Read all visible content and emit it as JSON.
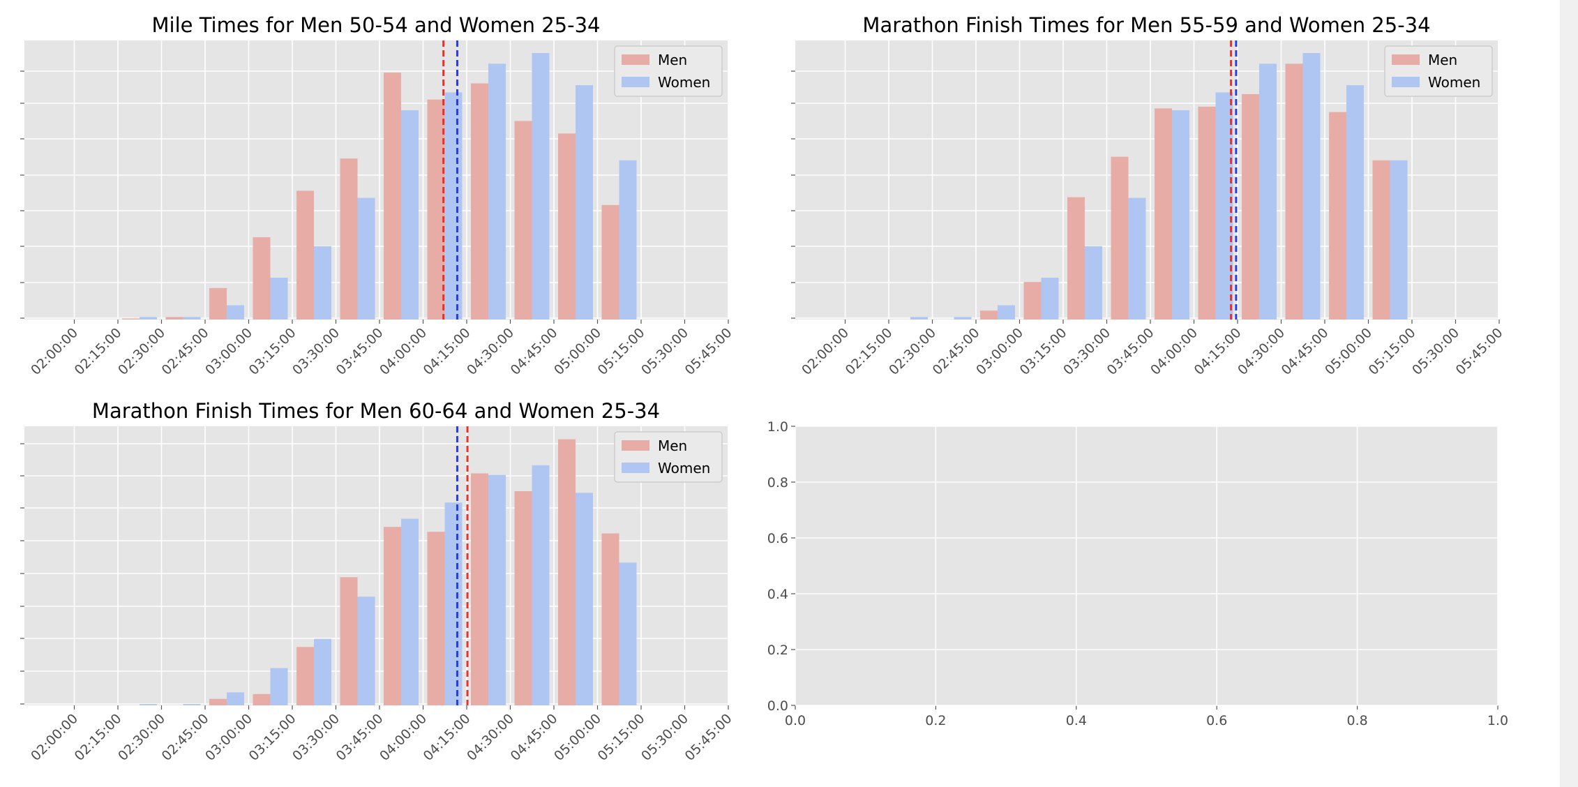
{
  "chart_data": [
    {
      "type": "bar",
      "title": "Mile Times for Men 50-54 and Women 25-34",
      "xlabel": "",
      "ylabel": "",
      "categories": [
        "02:00:00",
        "02:15:00",
        "02:30:00",
        "02:45:00",
        "03:00:00",
        "03:15:00",
        "03:30:00",
        "03:45:00",
        "04:00:00",
        "04:15:00",
        "04:30:00",
        "04:45:00",
        "05:00:00",
        "05:15:00",
        "05:30:00",
        "05:45:00"
      ],
      "y_tick_labels_shown": false,
      "ylim": [
        0,
        7.8
      ],
      "series": [
        {
          "name": "Men",
          "color": "#e8aca6",
          "values": [
            0,
            0.03,
            0.07,
            0.88,
            2.3,
            3.6,
            4.5,
            6.9,
            6.15,
            6.6,
            5.55,
            5.2,
            3.2,
            0,
            0,
            0
          ]
        },
        {
          "name": "Women",
          "color": "#afc6f2",
          "values": [
            0,
            0.07,
            0.07,
            0.4,
            1.17,
            2.05,
            3.4,
            5.85,
            6.35,
            7.15,
            7.45,
            6.55,
            4.45,
            0,
            0,
            0
          ]
        }
      ],
      "mean_lines": [
        {
          "series": "Men",
          "color": "#e8312b",
          "x": "04:07:00"
        },
        {
          "series": "Women",
          "color": "#2b3be0",
          "x": "04:11:45"
        }
      ],
      "legend": "upper right",
      "grid": true
    },
    {
      "type": "bar",
      "title": "Marathon Finish Times for Men 55-59 and Women 25-34",
      "xlabel": "",
      "ylabel": "",
      "categories": [
        "02:00:00",
        "02:15:00",
        "02:30:00",
        "02:45:00",
        "03:00:00",
        "03:15:00",
        "03:30:00",
        "03:45:00",
        "04:00:00",
        "04:15:00",
        "04:30:00",
        "04:45:00",
        "05:00:00",
        "05:15:00",
        "05:30:00",
        "05:45:00"
      ],
      "y_tick_labels_shown": false,
      "ylim": [
        0,
        7.8
      ],
      "series": [
        {
          "name": "Men",
          "color": "#e8aca6",
          "values": [
            0,
            0,
            0,
            0.25,
            1.05,
            3.42,
            4.55,
            5.9,
            5.95,
            6.3,
            7.15,
            5.8,
            4.45,
            0,
            0,
            0
          ]
        },
        {
          "name": "Women",
          "color": "#afc6f2",
          "values": [
            0,
            0.07,
            0.07,
            0.4,
            1.17,
            2.05,
            3.4,
            5.85,
            6.35,
            7.15,
            7.45,
            6.55,
            4.45,
            0,
            0,
            0
          ]
        }
      ],
      "mean_lines": [
        {
          "series": "Men",
          "color": "#e8312b",
          "x": "04:12:45"
        },
        {
          "series": "Women",
          "color": "#2b3be0",
          "x": "04:14:30"
        }
      ],
      "legend": "upper right",
      "grid": true
    },
    {
      "type": "bar",
      "title": "Marathon Finish Times for Men 60-64 and Women 25-34",
      "xlabel": "",
      "ylabel": "",
      "categories": [
        "02:00:00",
        "02:15:00",
        "02:30:00",
        "02:45:00",
        "03:00:00",
        "03:15:00",
        "03:30:00",
        "03:45:00",
        "04:00:00",
        "04:15:00",
        "04:30:00",
        "04:45:00",
        "05:00:00",
        "05:15:00",
        "05:30:00",
        "05:45:00"
      ],
      "y_tick_labels_shown": false,
      "ylim": [
        0,
        8.6
      ],
      "series": [
        {
          "name": "Men",
          "color": "#e8aca6",
          "values": [
            0,
            0,
            0,
            0.2,
            0.35,
            1.8,
            3.95,
            5.5,
            5.35,
            7.15,
            6.6,
            8.2,
            5.3,
            0,
            0,
            0
          ]
        },
        {
          "name": "Women",
          "color": "#afc6f2",
          "values": [
            0,
            0.04,
            0.04,
            0.4,
            1.15,
            2.05,
            3.35,
            5.75,
            6.25,
            7.1,
            7.4,
            6.55,
            4.4,
            0,
            0,
            0
          ]
        }
      ],
      "mean_lines": [
        {
          "series": "Men",
          "color": "#e8312b",
          "x": "04:15:15"
        },
        {
          "series": "Women",
          "color": "#2b3be0",
          "x": "04:11:45"
        }
      ],
      "legend": "upper right",
      "grid": true
    },
    {
      "type": "line",
      "title": "",
      "xlabel": "",
      "ylabel": "",
      "series": [],
      "xlim": [
        0.0,
        1.0
      ],
      "ylim": [
        0.0,
        1.0
      ],
      "x_ticks": [
        "0.0",
        "0.2",
        "0.4",
        "0.6",
        "0.8",
        "1.0"
      ],
      "y_ticks": [
        "0.0",
        "0.2",
        "0.4",
        "0.6",
        "0.8",
        "1.0"
      ],
      "grid": true
    }
  ]
}
